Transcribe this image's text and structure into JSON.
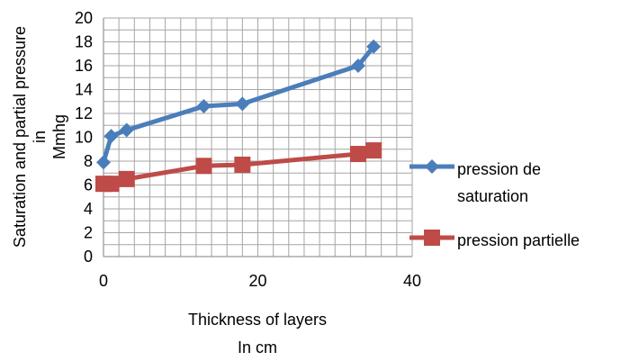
{
  "chart_data": {
    "type": "line",
    "title": "",
    "xlabel_lines": [
      "Thickness of layers",
      "In cm"
    ],
    "ylabel_lines": [
      "Saturation and partial pressure",
      "in",
      "Mmhg"
    ],
    "xlim": [
      0,
      40
    ],
    "ylim": [
      0,
      20
    ],
    "x_ticks": [
      "0",
      "20",
      "40"
    ],
    "y_ticks": [
      "0",
      "2",
      "4",
      "6",
      "8",
      "10",
      "12",
      "14",
      "16",
      "18",
      "20"
    ],
    "grid": true,
    "legend_position": "right",
    "series": [
      {
        "name_lines": [
          "pression de",
          "saturation"
        ],
        "color": "#4A7EBB",
        "marker": "diamond",
        "x": [
          0,
          1,
          3,
          13,
          18,
          33,
          35
        ],
        "y": [
          7.9,
          10.1,
          10.6,
          12.6,
          12.8,
          16.0,
          17.6
        ]
      },
      {
        "name_lines": [
          "pression partielle"
        ],
        "color": "#BE4B48",
        "marker": "square",
        "x": [
          0,
          1,
          3,
          13,
          18,
          33,
          35
        ],
        "y": [
          6.1,
          6.1,
          6.5,
          7.6,
          7.7,
          8.6,
          8.9
        ]
      }
    ]
  }
}
